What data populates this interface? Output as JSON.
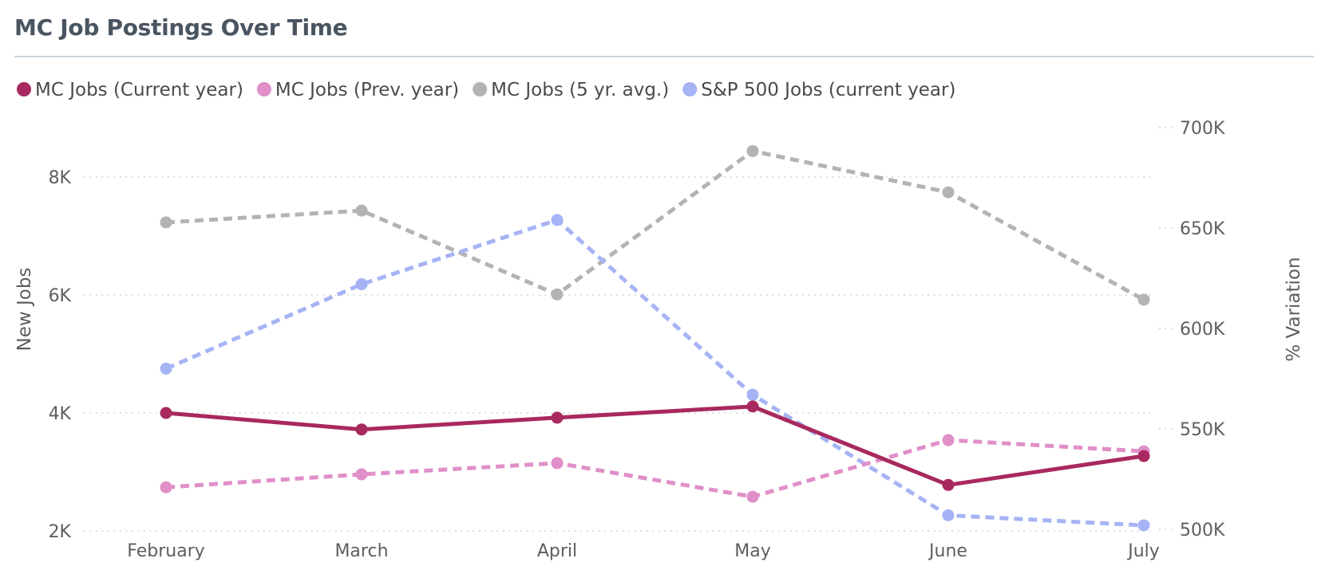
{
  "header": {
    "title": "MC Job Postings Over Time"
  },
  "chart_data": {
    "type": "line",
    "title": "MC Job Postings Over Time",
    "categories": [
      "February",
      "March",
      "April",
      "May",
      "June",
      "July"
    ],
    "y_left": {
      "label": "New Jobs",
      "range": [
        2000,
        9000
      ],
      "ticks": [
        2000,
        4000,
        6000,
        8000
      ],
      "tick_labels": [
        "2K",
        "4K",
        "6K",
        "8K"
      ]
    },
    "y_right": {
      "label": "% Variation",
      "range": [
        500000,
        700000
      ],
      "ticks": [
        500000,
        550000,
        600000,
        650000,
        700000
      ],
      "tick_labels": [
        "500K",
        "550K",
        "600K",
        "650K",
        "700K"
      ]
    },
    "legend_position": "top-left",
    "grid": true,
    "series": [
      {
        "name": "MC Jobs (Current year)",
        "axis": "left",
        "style": "solid",
        "color": "#a8295e",
        "values": [
          4000,
          3720,
          3920,
          4110,
          2780,
          3270
        ]
      },
      {
        "name": "MC Jobs (Prev. year)",
        "axis": "left",
        "style": "dashed",
        "color": "#e08fc8",
        "values": [
          2740,
          2960,
          3150,
          2580,
          3540,
          3350
        ]
      },
      {
        "name": "MC Jobs (5 yr. avg.)",
        "axis": "left",
        "style": "dashed",
        "color": "#b3b3b3",
        "values": [
          7230,
          7430,
          6010,
          8440,
          7740,
          5920
        ]
      },
      {
        "name": "S&P 500 Jobs (current year)",
        "axis": "right",
        "style": "dashed",
        "color": "#a6b3f5",
        "values": [
          580000,
          622000,
          654000,
          567000,
          507000,
          502000
        ]
      }
    ]
  }
}
